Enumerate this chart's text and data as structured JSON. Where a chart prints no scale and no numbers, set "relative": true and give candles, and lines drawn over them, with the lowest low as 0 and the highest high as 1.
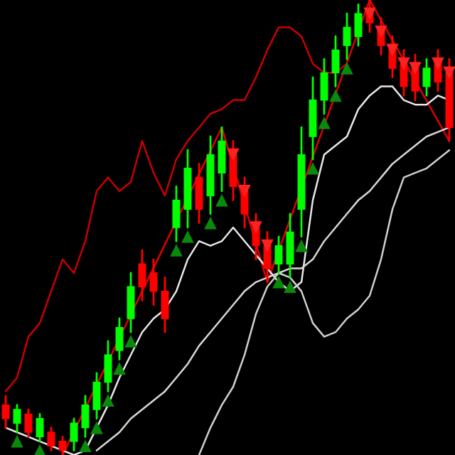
{
  "chart_data": {
    "type": "candlestick",
    "relative": true,
    "categories": [
      null,
      null,
      null,
      null,
      null,
      null,
      null,
      null,
      null,
      null,
      null,
      null,
      null,
      null,
      null,
      null,
      null,
      null,
      null,
      null,
      null,
      null,
      null,
      null,
      null,
      null,
      null,
      null,
      null,
      null,
      null,
      null,
      null,
      null,
      null,
      null,
      null,
      null,
      null,
      null
    ],
    "ohlc": [
      [
        0.11,
        0.13,
        0.06,
        0.08
      ],
      [
        0.07,
        0.11,
        0.05,
        0.1
      ],
      [
        0.09,
        0.1,
        0.04,
        0.05
      ],
      [
        0.04,
        0.09,
        0.03,
        0.08
      ],
      [
        0.05,
        0.06,
        0.01,
        0.02
      ],
      [
        0.03,
        0.04,
        0.0,
        0.01
      ],
      [
        0.03,
        0.08,
        0.01,
        0.07
      ],
      [
        0.06,
        0.13,
        0.04,
        0.11
      ],
      [
        0.1,
        0.18,
        0.08,
        0.16
      ],
      [
        0.16,
        0.25,
        0.14,
        0.22
      ],
      [
        0.23,
        0.3,
        0.21,
        0.28
      ],
      [
        0.3,
        0.4,
        0.27,
        0.37
      ],
      [
        0.42,
        0.45,
        0.34,
        0.37
      ],
      [
        0.4,
        0.43,
        0.33,
        0.36
      ],
      [
        0.36,
        0.39,
        0.27,
        0.3
      ],
      [
        0.5,
        0.59,
        0.47,
        0.56
      ],
      [
        0.54,
        0.67,
        0.5,
        0.63
      ],
      [
        0.61,
        0.64,
        0.51,
        0.54
      ],
      [
        0.57,
        0.7,
        0.53,
        0.66
      ],
      [
        0.62,
        0.72,
        0.58,
        0.69
      ],
      [
        0.66,
        0.69,
        0.56,
        0.59
      ],
      [
        0.58,
        0.61,
        0.5,
        0.53
      ],
      [
        0.5,
        0.53,
        0.43,
        0.46
      ],
      [
        0.46,
        0.49,
        0.38,
        0.41
      ],
      [
        0.42,
        0.48,
        0.4,
        0.46
      ],
      [
        0.42,
        0.53,
        0.39,
        0.49
      ],
      [
        0.54,
        0.72,
        0.48,
        0.66
      ],
      [
        0.7,
        0.83,
        0.65,
        0.78
      ],
      [
        0.78,
        0.87,
        0.75,
        0.84
      ],
      [
        0.84,
        0.92,
        0.81,
        0.89
      ],
      [
        0.9,
        0.97,
        0.87,
        0.94
      ],
      [
        0.92,
        0.99,
        0.9,
        0.97
      ],
      [
        0.98,
        1.0,
        0.93,
        0.95
      ],
      [
        0.94,
        0.96,
        0.88,
        0.9
      ],
      [
        0.9,
        0.92,
        0.83,
        0.85
      ],
      [
        0.86,
        0.89,
        0.79,
        0.81
      ],
      [
        0.85,
        0.88,
        0.78,
        0.8
      ],
      [
        0.81,
        0.87,
        0.79,
        0.85
      ],
      [
        0.87,
        0.89,
        0.8,
        0.82
      ],
      [
        0.84,
        0.87,
        0.69,
        0.72
      ]
    ],
    "colors": [
      "#ff0000",
      "#00ff00",
      "#ff0000",
      "#00ff00",
      "#ff0000",
      "#ff0000",
      "#00ff00",
      "#00ff00",
      "#00ff00",
      "#00ff00",
      "#00ff00",
      "#00ff00",
      "#ff0000",
      "#ff0000",
      "#ff0000",
      "#00ff00",
      "#00ff00",
      "#ff0000",
      "#00ff00",
      "#00ff00",
      "#ff0000",
      "#ff0000",
      "#ff0000",
      "#ff0000",
      "#00ff00",
      "#00ff00",
      "#00ff00",
      "#00ff00",
      "#00ff00",
      "#00ff00",
      "#00ff00",
      "#00ff00",
      "#ff0000",
      "#ff0000",
      "#ff0000",
      "#ff0000",
      "#ff0000",
      "#00ff00",
      "#ff0000",
      "#ff0000"
    ],
    "series": [
      {
        "type": "line",
        "color": "#c80000",
        "values": [
          0.14,
          0.17,
          0.26,
          0.29,
          0.36,
          0.43,
          0.4,
          0.47,
          0.58,
          0.61,
          0.58,
          0.6,
          0.69,
          0.62,
          0.57,
          0.65,
          0.69,
          0.72,
          0.75,
          0.76,
          0.78,
          0.78,
          0.83,
          0.89,
          0.94,
          0.94,
          0.92,
          0.86,
          0.84,
          0.84,
          0.86,
          null,
          null,
          null,
          null,
          null,
          null,
          null,
          null,
          null
        ]
      },
      {
        "type": "line",
        "color": "#e00000",
        "values": [
          null,
          null,
          null,
          null,
          null,
          0.0,
          null,
          null,
          null,
          null,
          null,
          null,
          null,
          null,
          null,
          null,
          null,
          null,
          null,
          0.72,
          null,
          null,
          null,
          0.38,
          null,
          null,
          null,
          null,
          null,
          null,
          null,
          null,
          1.0,
          null,
          null,
          null,
          null,
          null,
          null,
          0.69
        ]
      },
      {
        "type": "line",
        "color": "#e8e8e8",
        "values": [
          0.06,
          0.05,
          0.04,
          0.03,
          0.02,
          0.01,
          0.0,
          0.01,
          0.06,
          0.11,
          0.17,
          0.22,
          0.27,
          0.3,
          0.32,
          0.36,
          0.43,
          0.47,
          0.46,
          0.47,
          0.5,
          0.47,
          0.44,
          0.41,
          0.38,
          0.36,
          0.38,
          0.56,
          0.66,
          0.68,
          0.7,
          0.76,
          0.79,
          0.81,
          0.81,
          0.78,
          0.77,
          0.77,
          0.79,
          0.78
        ]
      },
      {
        "type": "line",
        "color": "#d8d8d8",
        "values": [
          null,
          null,
          null,
          null,
          null,
          null,
          null,
          null,
          0.01,
          0.03,
          0.05,
          0.08,
          0.1,
          0.12,
          0.14,
          0.17,
          0.2,
          0.24,
          0.27,
          0.3,
          0.33,
          0.36,
          0.38,
          0.39,
          0.4,
          0.41,
          0.41,
          0.43,
          0.47,
          0.5,
          0.53,
          0.56,
          0.58,
          0.61,
          0.64,
          0.66,
          0.68,
          0.7,
          0.71,
          0.72
        ]
      },
      {
        "type": "line",
        "color": "#d0d0d0",
        "values": [
          null,
          null,
          null,
          null,
          null,
          null,
          null,
          null,
          null,
          null,
          null,
          null,
          null,
          null,
          null,
          null,
          null,
          0.0,
          0.06,
          0.11,
          0.15,
          0.22,
          0.31,
          0.37,
          0.4,
          0.39,
          0.36,
          0.29,
          0.26,
          0.27,
          0.3,
          0.32,
          0.35,
          0.43,
          0.54,
          0.61,
          0.62,
          0.63,
          0.65,
          0.67
        ]
      },
      {
        "type": "scatter",
        "marker": "triangle",
        "color": "#0a8a0a",
        "values": [
          null,
          0.03,
          null,
          0.01,
          null,
          null,
          null,
          0.02,
          0.06,
          0.12,
          0.19,
          0.25,
          null,
          null,
          null,
          0.45,
          0.48,
          null,
          0.51,
          0.56,
          null,
          null,
          null,
          null,
          0.38,
          0.37,
          0.46,
          0.63,
          0.73,
          0.79,
          0.85,
          null,
          null,
          null,
          null,
          null,
          null,
          null,
          null,
          null
        ]
      },
      {
        "type": "scatter",
        "marker": "triangle_down",
        "color": "#ff2020",
        "values": [
          null,
          null,
          null,
          null,
          null,
          null,
          null,
          null,
          null,
          null,
          null,
          null,
          null,
          null,
          null,
          null,
          null,
          null,
          null,
          null,
          0.66,
          0.58,
          0.5,
          0.46,
          null,
          null,
          null,
          null,
          null,
          null,
          null,
          null,
          0.97,
          0.93,
          0.89,
          0.86,
          0.85,
          null,
          0.86,
          0.84
        ]
      }
    ]
  }
}
